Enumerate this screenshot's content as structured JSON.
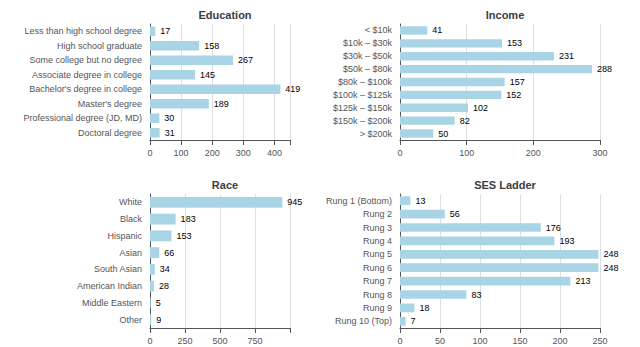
{
  "chart_data": [
    {
      "type": "bar",
      "title": "Education",
      "categories": [
        "Less than high school degree",
        "High school graduate",
        "Some college but no degree",
        "Associate degree in college",
        "Bachelor's degree in college",
        "Master's degree",
        "Professional degree (JD, MD)",
        "Doctoral degree"
      ],
      "values": [
        17,
        158,
        267,
        145,
        419,
        189,
        30,
        31
      ],
      "color": "#a8d4e6",
      "orientation": "horizontal",
      "xlim": [
        0,
        450
      ],
      "xticks": [
        0,
        100,
        200,
        300,
        400
      ],
      "grid": true,
      "data_labels": true
    },
    {
      "type": "bar",
      "title": "Income",
      "categories": [
        "< $10k",
        "$10k – $30k",
        "$30k – $50k",
        "$50k – $80k",
        "$80k – $100k",
        "$100k – $125k",
        "$125k – $150k",
        "$150k – $200k",
        "> $200k"
      ],
      "values": [
        41,
        153,
        231,
        288,
        157,
        152,
        102,
        82,
        50
      ],
      "color": "#a8d4e6",
      "orientation": "horizontal",
      "xlim": [
        0,
        300
      ],
      "xticks": [
        0,
        100,
        200,
        300
      ],
      "grid": true,
      "data_labels": true
    },
    {
      "type": "bar",
      "title": "Race",
      "categories": [
        "White",
        "Black",
        "Hispanic",
        "Asian",
        "South Asian",
        "American Indian",
        "Middle Eastern",
        "Other"
      ],
      "values": [
        945,
        183,
        153,
        66,
        34,
        28,
        5,
        9
      ],
      "color": "#a8d4e6",
      "orientation": "horizontal",
      "xlim": [
        0,
        1000
      ],
      "xticks": [
        0,
        250,
        500,
        750
      ],
      "grid": true,
      "data_labels": true
    },
    {
      "type": "bar",
      "title": "SES Ladder",
      "categories": [
        "Rung 1 (Bottom)",
        "Rung 2",
        "Rung 3",
        "Rung 4",
        "Rung 5",
        "Rung 6",
        "Rung 7",
        "Rung 8",
        "Rung 9",
        "Rung 10 (Top)"
      ],
      "values": [
        13,
        56,
        176,
        193,
        248,
        248,
        213,
        83,
        18,
        7
      ],
      "color": "#a8d4e6",
      "orientation": "horizontal",
      "xlim": [
        0,
        250
      ],
      "xticks": [
        0,
        50,
        100,
        150,
        200,
        250
      ],
      "grid": true,
      "data_labels": true
    }
  ]
}
